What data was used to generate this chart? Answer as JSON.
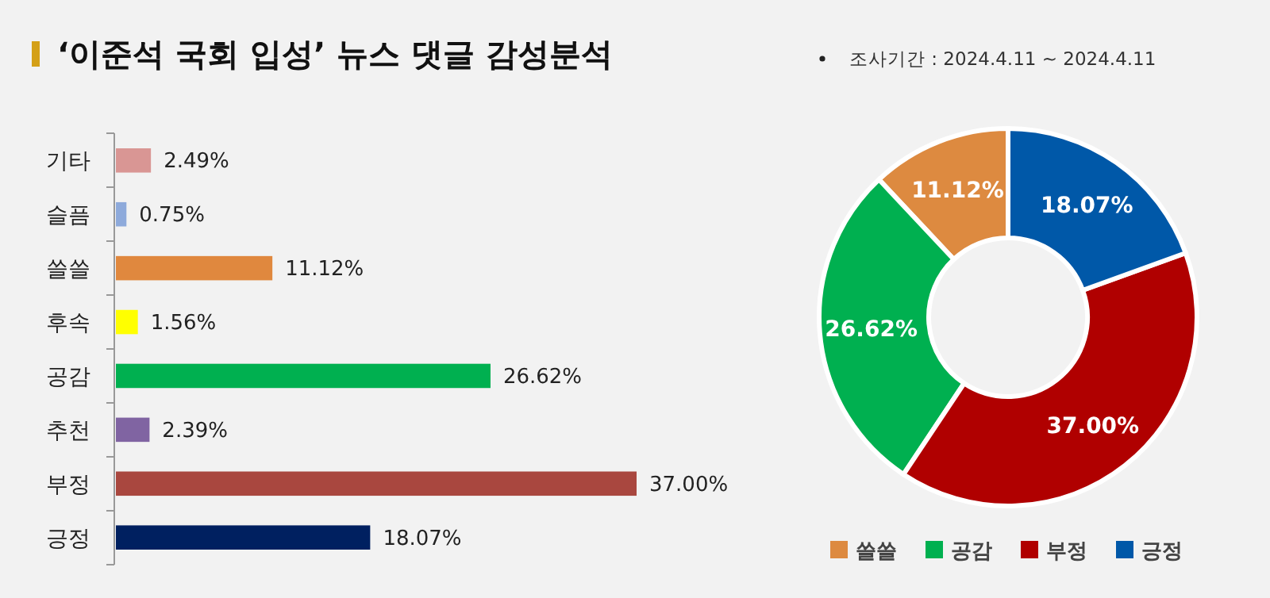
{
  "chart_data": [
    {
      "type": "bar",
      "orientation": "horizontal",
      "title": "‘이준석 국회 입성’ 뉴스 댓글 감성분석",
      "categories": [
        "기타",
        "슬픔",
        "쓸쓸",
        "후속",
        "공감",
        "추천",
        "부정",
        "긍정"
      ],
      "values": [
        2.49,
        0.75,
        11.12,
        1.56,
        26.62,
        2.39,
        37.0,
        18.07
      ],
      "value_labels": [
        "2.49%",
        "0.75%",
        "11.12%",
        "1.56%",
        "26.62%",
        "2.39%",
        "37.00%",
        "18.07%"
      ],
      "colors": [
        "#d99694",
        "#8eaadb",
        "#e0883e",
        "#ffff00",
        "#00b050",
        "#8064a2",
        "#a9473f",
        "#002060"
      ]
    },
    {
      "type": "donut",
      "annotations": [
        "조사기간 : 2024.4.11 ~ 2024.4.11"
      ],
      "categories": [
        "쓸쓸",
        "공감",
        "부정",
        "긍정"
      ],
      "values": [
        11.12,
        26.62,
        37.0,
        18.07
      ],
      "value_labels": [
        "11.12%",
        "26.62%",
        "37.00%",
        "18.07%"
      ],
      "colors": [
        "#dd8a40",
        "#00b050",
        "#b00000",
        "#0058a8"
      ],
      "legend": "bottom"
    }
  ]
}
